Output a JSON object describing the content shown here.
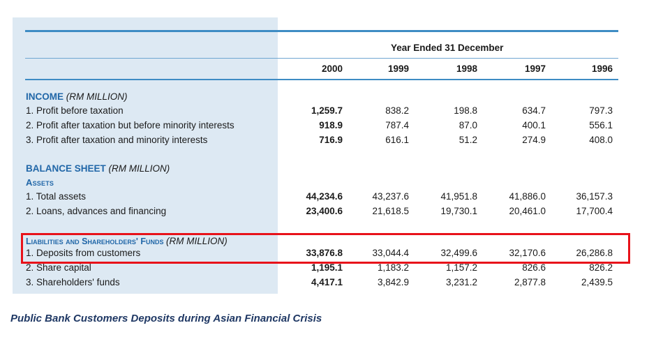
{
  "header": {
    "period": "Year Ended 31 December",
    "years": [
      "2000",
      "1999",
      "1998",
      "1997",
      "1996"
    ]
  },
  "income": {
    "title": "INCOME",
    "unit": "(RM MILLION)",
    "rows": [
      {
        "label": "1.  Profit before taxation",
        "values": [
          "1,259.7",
          "838.2",
          "198.8",
          "634.7",
          "797.3"
        ]
      },
      {
        "label": "2.  Profit after taxation but before minority interests",
        "values": [
          "918.9",
          "787.4",
          "87.0",
          "400.1",
          "556.1"
        ]
      },
      {
        "label": "3.  Profit after taxation and minority interests",
        "values": [
          "716.9",
          "616.1",
          "51.2",
          "274.9",
          "408.0"
        ]
      }
    ]
  },
  "balance": {
    "title": "BALANCE SHEET",
    "unit": "(RM MILLION)",
    "assets_label": "Assets",
    "rows": [
      {
        "label": "1.  Total assets",
        "values": [
          "44,234.6",
          "43,237.6",
          "41,951.8",
          "41,886.0",
          "36,157.3"
        ]
      },
      {
        "label": "2.  Loans, advances and financing",
        "values": [
          "23,400.6",
          "21,618.5",
          "19,730.1",
          "20,461.0",
          "17,700.4"
        ]
      }
    ]
  },
  "liabilities": {
    "title": "Liabilities and Shareholders' Funds",
    "unit": "(RM MILLION)",
    "rows": [
      {
        "label": "1.  Deposits from customers",
        "values": [
          "33,876.8",
          "33,044.4",
          "32,499.6",
          "32,170.6",
          "26,286.8"
        ]
      },
      {
        "label": "2.  Share capital",
        "values": [
          "1,195.1",
          "1,183.2",
          "1,157.2",
          "826.6",
          "826.2"
        ]
      },
      {
        "label": "3.  Shareholders' funds",
        "values": [
          "4,417.1",
          "3,842.9",
          "3,231.2",
          "2,877.8",
          "2,439.5"
        ]
      }
    ]
  },
  "caption": "Public Bank Customers Deposits during Asian Financial Crisis",
  "colors": {
    "highlight": "#e8121a",
    "rule": "#3e8cc4",
    "panel": "#dde9f3",
    "section": "#2167a8",
    "caption": "#1f3864"
  }
}
